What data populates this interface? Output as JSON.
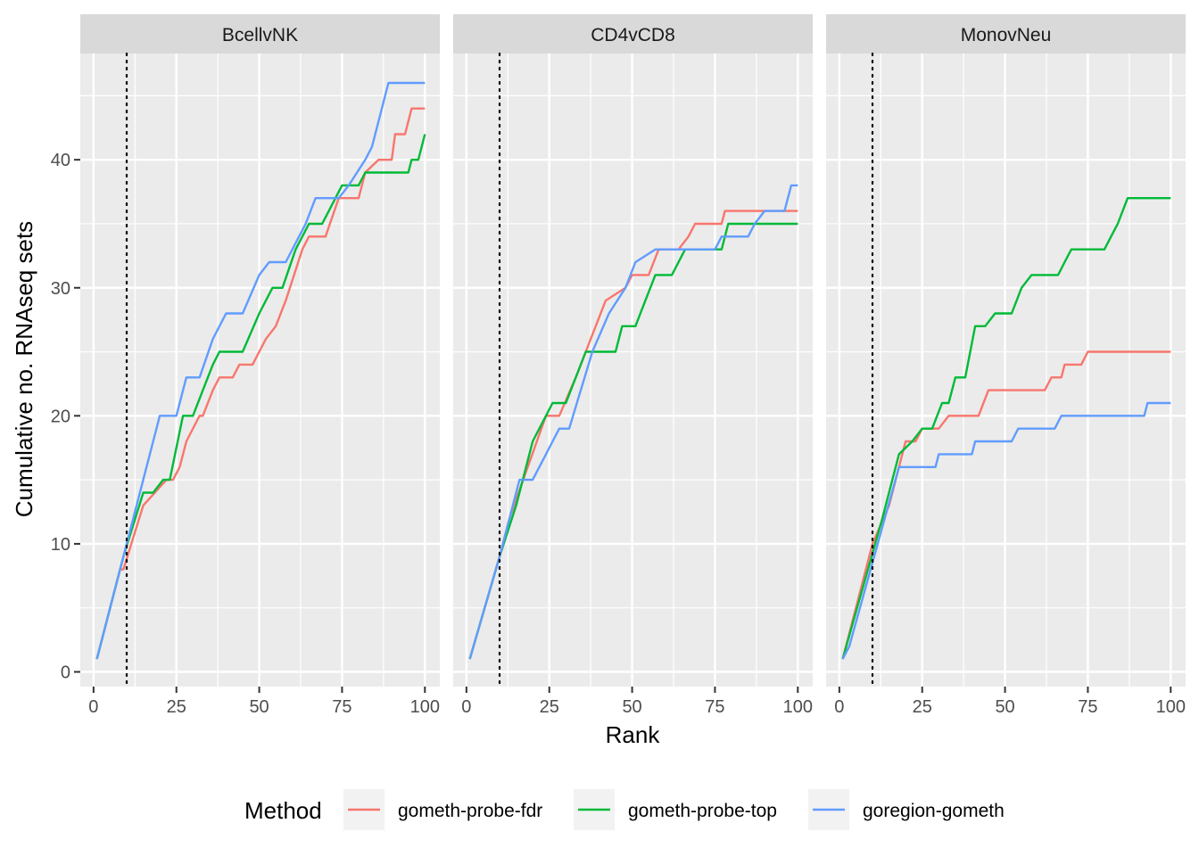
{
  "chart_data": {
    "type": "line",
    "step": true,
    "xlabel": "Rank",
    "ylabel": "Cumulative no. RNAseq sets",
    "xlim": [
      1,
      100
    ],
    "ylim": [
      0,
      48
    ],
    "x_ticks": [
      0,
      25,
      50,
      75,
      100
    ],
    "y_ticks": [
      0,
      10,
      20,
      30,
      40
    ],
    "reference_line": {
      "x": 10,
      "style": "dotted"
    },
    "grid": true,
    "legend": {
      "title": "Method",
      "position": "bottom"
    },
    "series_info": [
      {
        "name": "gometh-probe-fdr",
        "color": "#F8766D"
      },
      {
        "name": "gometh-probe-top",
        "color": "#00BA38"
      },
      {
        "name": "goregion-gometh",
        "color": "#619CFF"
      }
    ],
    "panels": [
      {
        "title": "BcellvNK",
        "series": [
          {
            "name": "gometh-probe-fdr",
            "points": [
              [
                1,
                1
              ],
              [
                4,
                4
              ],
              [
                8,
                8
              ],
              [
                9,
                8
              ],
              [
                15,
                13
              ],
              [
                22,
                15
              ],
              [
                24,
                15
              ],
              [
                26,
                16
              ],
              [
                28,
                18
              ],
              [
                32,
                20
              ],
              [
                33,
                20
              ],
              [
                36,
                22
              ],
              [
                38,
                23
              ],
              [
                42,
                23
              ],
              [
                44,
                24
              ],
              [
                48,
                24
              ],
              [
                52,
                26
              ],
              [
                55,
                27
              ],
              [
                58,
                29
              ],
              [
                63,
                33
              ],
              [
                65,
                34
              ],
              [
                70,
                34
              ],
              [
                74,
                37
              ],
              [
                80,
                37
              ],
              [
                82,
                39
              ],
              [
                86,
                40
              ],
              [
                90,
                40
              ],
              [
                91,
                42
              ],
              [
                94,
                42
              ],
              [
                96,
                44
              ],
              [
                100,
                44
              ]
            ]
          },
          {
            "name": "gometh-probe-top",
            "points": [
              [
                1,
                1
              ],
              [
                9,
                9
              ],
              [
                15,
                14
              ],
              [
                18,
                14
              ],
              [
                21,
                15
              ],
              [
                23,
                15
              ],
              [
                27,
                20
              ],
              [
                30,
                20
              ],
              [
                33,
                22
              ],
              [
                36,
                24
              ],
              [
                38,
                25
              ],
              [
                45,
                25
              ],
              [
                50,
                28
              ],
              [
                54,
                30
              ],
              [
                57,
                30
              ],
              [
                61,
                33
              ],
              [
                65,
                35
              ],
              [
                69,
                35
              ],
              [
                71,
                36
              ],
              [
                75,
                38
              ],
              [
                80,
                38
              ],
              [
                82,
                39
              ],
              [
                95,
                39
              ],
              [
                96,
                40
              ],
              [
                98,
                40
              ],
              [
                100,
                42
              ]
            ]
          },
          {
            "name": "goregion-gometh",
            "points": [
              [
                1,
                1
              ],
              [
                20,
                20
              ],
              [
                25,
                20
              ],
              [
                28,
                23
              ],
              [
                32,
                23
              ],
              [
                36,
                26
              ],
              [
                40,
                28
              ],
              [
                45,
                28
              ],
              [
                50,
                31
              ],
              [
                53,
                32
              ],
              [
                58,
                32
              ],
              [
                64,
                35
              ],
              [
                67,
                37
              ],
              [
                74,
                37
              ],
              [
                77,
                38
              ],
              [
                82,
                40
              ],
              [
                84,
                41
              ],
              [
                86,
                43
              ],
              [
                89,
                46
              ],
              [
                100,
                46
              ]
            ]
          }
        ]
      },
      {
        "title": "CD4vCD8",
        "series": [
          {
            "name": "gometh-probe-fdr",
            "points": [
              [
                1,
                1
              ],
              [
                10,
                9
              ],
              [
                13,
                12
              ],
              [
                24,
                20
              ],
              [
                28,
                20
              ],
              [
                33,
                23
              ],
              [
                36,
                25
              ],
              [
                42,
                29
              ],
              [
                48,
                30
              ],
              [
                50,
                31
              ],
              [
                55,
                31
              ],
              [
                58,
                33
              ],
              [
                64,
                33
              ],
              [
                67,
                34
              ],
              [
                69,
                35
              ],
              [
                77,
                35
              ],
              [
                78,
                36
              ],
              [
                100,
                36
              ]
            ]
          },
          {
            "name": "gometh-probe-top",
            "points": [
              [
                1,
                1
              ],
              [
                10,
                9
              ],
              [
                15,
                13
              ],
              [
                20,
                18
              ],
              [
                24,
                20
              ],
              [
                26,
                21
              ],
              [
                30,
                21
              ],
              [
                36,
                25
              ],
              [
                45,
                25
              ],
              [
                47,
                27
              ],
              [
                51,
                27
              ],
              [
                54,
                29
              ],
              [
                57,
                31
              ],
              [
                62,
                31
              ],
              [
                66,
                33
              ],
              [
                77,
                33
              ],
              [
                79,
                35
              ],
              [
                100,
                35
              ]
            ]
          },
          {
            "name": "goregion-gometh",
            "points": [
              [
                1,
                1
              ],
              [
                10,
                9
              ],
              [
                16,
                15
              ],
              [
                20,
                15
              ],
              [
                24,
                17
              ],
              [
                28,
                19
              ],
              [
                31,
                19
              ],
              [
                38,
                25
              ],
              [
                43,
                28
              ],
              [
                48,
                30
              ],
              [
                51,
                32
              ],
              [
                57,
                33
              ],
              [
                75,
                33
              ],
              [
                77,
                34
              ],
              [
                85,
                34
              ],
              [
                87,
                35
              ],
              [
                90,
                36
              ],
              [
                96,
                36
              ],
              [
                98,
                38
              ],
              [
                100,
                38
              ]
            ]
          }
        ]
      },
      {
        "title": "MonovNeu",
        "series": [
          {
            "name": "gometh-probe-fdr",
            "points": [
              [
                1,
                1
              ],
              [
                10,
                10
              ],
              [
                15,
                13
              ],
              [
                20,
                18
              ],
              [
                23,
                18
              ],
              [
                25,
                19
              ],
              [
                30,
                19
              ],
              [
                33,
                20
              ],
              [
                42,
                20
              ],
              [
                45,
                22
              ],
              [
                62,
                22
              ],
              [
                64,
                23
              ],
              [
                67,
                23
              ],
              [
                68,
                24
              ],
              [
                73,
                24
              ],
              [
                75,
                25
              ],
              [
                100,
                25
              ]
            ]
          },
          {
            "name": "gometh-probe-top",
            "points": [
              [
                1,
                1
              ],
              [
                13,
                12
              ],
              [
                18,
                17
              ],
              [
                22,
                18
              ],
              [
                25,
                19
              ],
              [
                28,
                19
              ],
              [
                31,
                21
              ],
              [
                33,
                21
              ],
              [
                35,
                23
              ],
              [
                38,
                23
              ],
              [
                41,
                27
              ],
              [
                44,
                27
              ],
              [
                47,
                28
              ],
              [
                52,
                28
              ],
              [
                55,
                30
              ],
              [
                58,
                31
              ],
              [
                66,
                31
              ],
              [
                68,
                32
              ],
              [
                70,
                33
              ],
              [
                80,
                33
              ],
              [
                82,
                34
              ],
              [
                84,
                35
              ],
              [
                87,
                37
              ],
              [
                100,
                37
              ]
            ]
          },
          {
            "name": "goregion-gometh",
            "points": [
              [
                1,
                1
              ],
              [
                3,
                2
              ],
              [
                18,
                16
              ],
              [
                29,
                16
              ],
              [
                30,
                17
              ],
              [
                40,
                17
              ],
              [
                41,
                18
              ],
              [
                52,
                18
              ],
              [
                54,
                19
              ],
              [
                65,
                19
              ],
              [
                67,
                20
              ],
              [
                92,
                20
              ],
              [
                93,
                21
              ],
              [
                100,
                21
              ]
            ]
          }
        ]
      }
    ]
  }
}
